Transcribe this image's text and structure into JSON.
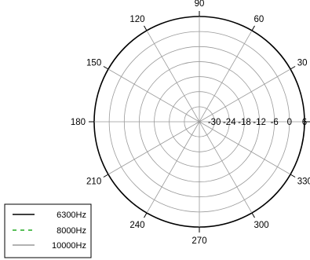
{
  "chart_data": {
    "type": "polar",
    "title": "",
    "angular_axis": {
      "ticks": [
        0,
        30,
        60,
        90,
        120,
        150,
        180,
        210,
        240,
        270,
        300,
        330
      ],
      "labels": [
        "0",
        "30",
        "60",
        "90",
        "120",
        "150",
        "180",
        "210",
        "240",
        "270",
        "300",
        "330"
      ],
      "direction": "counterclockwise",
      "zero_at": "right"
    },
    "radial_axis": {
      "range": [
        -36,
        6
      ],
      "ticks": [
        -30,
        -24,
        -18,
        -12,
        -6,
        0,
        6
      ],
      "labels": [
        "-30",
        "-24",
        "-18",
        "-12",
        "-6",
        "0",
        "6"
      ]
    },
    "grid": true,
    "legend_position": "bottom-left",
    "series": [
      {
        "name": "6300Hz",
        "line_style": "solid",
        "color": "#000000",
        "values": []
      },
      {
        "name": "8000Hz",
        "line_style": "dashed",
        "color": "#22aa22",
        "values": []
      },
      {
        "name": "10000Hz",
        "line_style": "solid",
        "color": "#999999",
        "values": []
      }
    ]
  }
}
